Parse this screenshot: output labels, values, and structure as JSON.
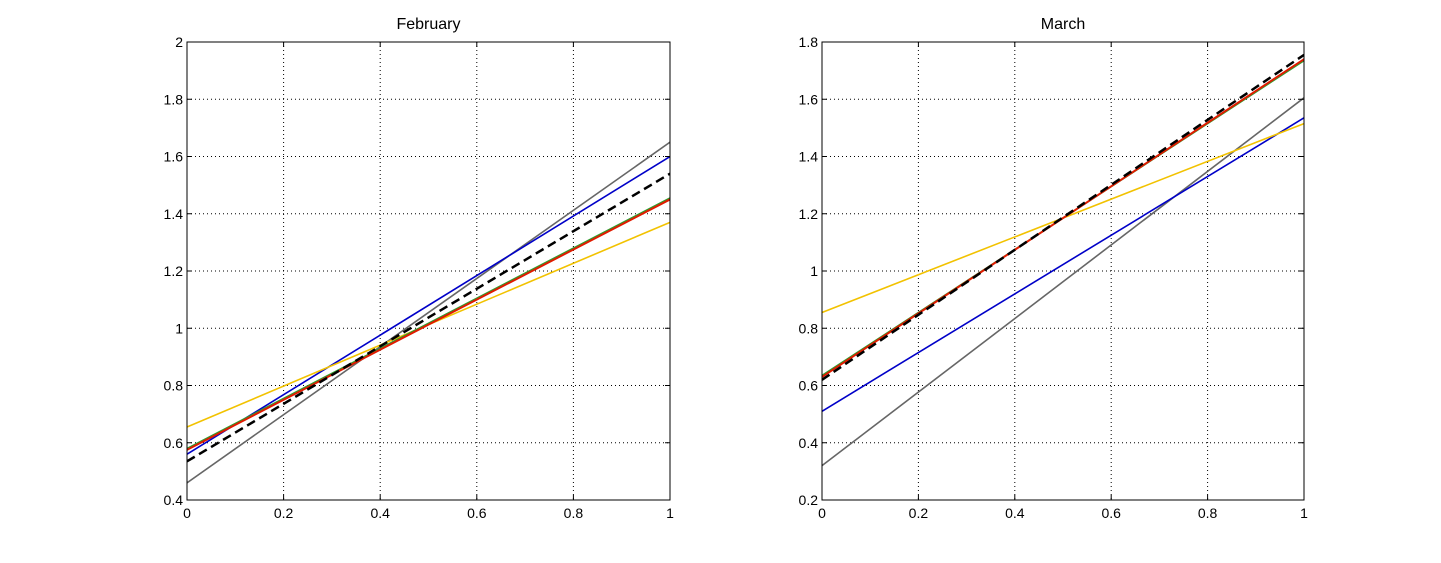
{
  "chart_data": [
    {
      "type": "line",
      "title": "February",
      "xlabel": "",
      "ylabel": "",
      "xlim": [
        0,
        1
      ],
      "ylim": [
        0.4,
        2
      ],
      "grid": true,
      "xticks": [
        0,
        0.2,
        0.4,
        0.6,
        0.8,
        1
      ],
      "xtick_labels": [
        "0",
        "0.2",
        "0.4",
        "0.6",
        "0.8",
        "1"
      ],
      "yticks": [
        0.4,
        0.6,
        0.8,
        1,
        1.2,
        1.4,
        1.6,
        1.8,
        2
      ],
      "ytick_labels": [
        "0.4",
        "0.6",
        "0.8",
        "1",
        "1.2",
        "1.4",
        "1.6",
        "1.8",
        "2"
      ],
      "series": [
        {
          "name": "gray",
          "color": "#666666",
          "style": "solid",
          "x": [
            0,
            1
          ],
          "y": [
            0.46,
            1.65
          ]
        },
        {
          "name": "blue",
          "color": "#0000c8",
          "style": "solid",
          "x": [
            0,
            1
          ],
          "y": [
            0.56,
            1.6
          ]
        },
        {
          "name": "yellow",
          "color": "#f2c200",
          "style": "solid",
          "x": [
            0,
            1
          ],
          "y": [
            0.655,
            1.37
          ]
        },
        {
          "name": "green",
          "color": "#2e9d2e",
          "style": "solid",
          "x": [
            0,
            1
          ],
          "y": [
            0.58,
            1.455
          ]
        },
        {
          "name": "red",
          "color": "#e01b00",
          "style": "solid",
          "x": [
            0,
            1
          ],
          "y": [
            0.575,
            1.45
          ]
        },
        {
          "name": "black dashed",
          "color": "#000000",
          "style": "dashed",
          "x": [
            0,
            1
          ],
          "y": [
            0.535,
            1.54
          ]
        }
      ]
    },
    {
      "type": "line",
      "title": "March",
      "xlabel": "",
      "ylabel": "",
      "xlim": [
        0,
        1
      ],
      "ylim": [
        0.2,
        1.8
      ],
      "grid": true,
      "xticks": [
        0,
        0.2,
        0.4,
        0.6,
        0.8,
        1
      ],
      "xtick_labels": [
        "0",
        "0.2",
        "0.4",
        "0.6",
        "0.8",
        "1"
      ],
      "yticks": [
        0.2,
        0.4,
        0.6,
        0.8,
        1,
        1.2,
        1.4,
        1.6,
        1.8
      ],
      "ytick_labels": [
        "0.2",
        "0.4",
        "0.6",
        "0.8",
        "1",
        "1.2",
        "1.4",
        "1.6",
        "1.8"
      ],
      "series": [
        {
          "name": "gray",
          "color": "#666666",
          "style": "solid",
          "x": [
            0,
            1
          ],
          "y": [
            0.32,
            1.605
          ]
        },
        {
          "name": "blue",
          "color": "#0000c8",
          "style": "solid",
          "x": [
            0,
            1
          ],
          "y": [
            0.51,
            1.535
          ]
        },
        {
          "name": "yellow",
          "color": "#f2c200",
          "style": "solid",
          "x": [
            0,
            1
          ],
          "y": [
            0.855,
            1.515
          ]
        },
        {
          "name": "green",
          "color": "#2e9d2e",
          "style": "solid",
          "x": [
            0,
            1
          ],
          "y": [
            0.635,
            1.735
          ]
        },
        {
          "name": "red",
          "color": "#e01b00",
          "style": "solid",
          "x": [
            0,
            1
          ],
          "y": [
            0.63,
            1.74
          ]
        },
        {
          "name": "black dashed",
          "color": "#000000",
          "style": "dashed",
          "x": [
            0,
            1
          ],
          "y": [
            0.62,
            1.755
          ]
        }
      ]
    }
  ]
}
